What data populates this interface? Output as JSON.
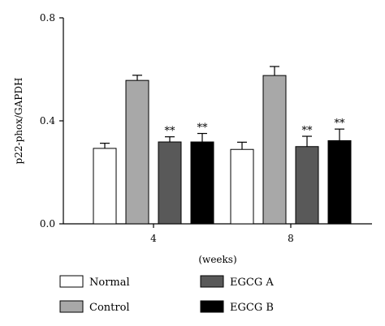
{
  "chart_data": {
    "type": "bar",
    "ylabel": "p22-phox/GAPDH",
    "xlabel": "(weeks)",
    "categories": [
      "4",
      "8"
    ],
    "ylim": [
      0,
      0.8
    ],
    "yticks": [
      "0.0",
      "0.4",
      "0.8"
    ],
    "grid": false,
    "legend_position": "bottom",
    "series": [
      {
        "name": "Normal",
        "color": "#ffffff",
        "values": [
          0.293,
          0.289
        ],
        "errors": [
          0.02,
          0.028
        ],
        "annotations": [
          "",
          ""
        ]
      },
      {
        "name": "Control",
        "color": "#a8a8a8",
        "values": [
          0.557,
          0.576
        ],
        "errors": [
          0.02,
          0.035
        ],
        "annotations": [
          "",
          ""
        ]
      },
      {
        "name": "EGCG A",
        "color": "#595959",
        "values": [
          0.318,
          0.3
        ],
        "errors": [
          0.02,
          0.04
        ],
        "annotations": [
          "**",
          "**"
        ]
      },
      {
        "name": "EGCG B",
        "color": "#000000",
        "values": [
          0.318,
          0.323
        ],
        "errors": [
          0.033,
          0.045
        ],
        "annotations": [
          "**",
          "**"
        ]
      }
    ]
  }
}
